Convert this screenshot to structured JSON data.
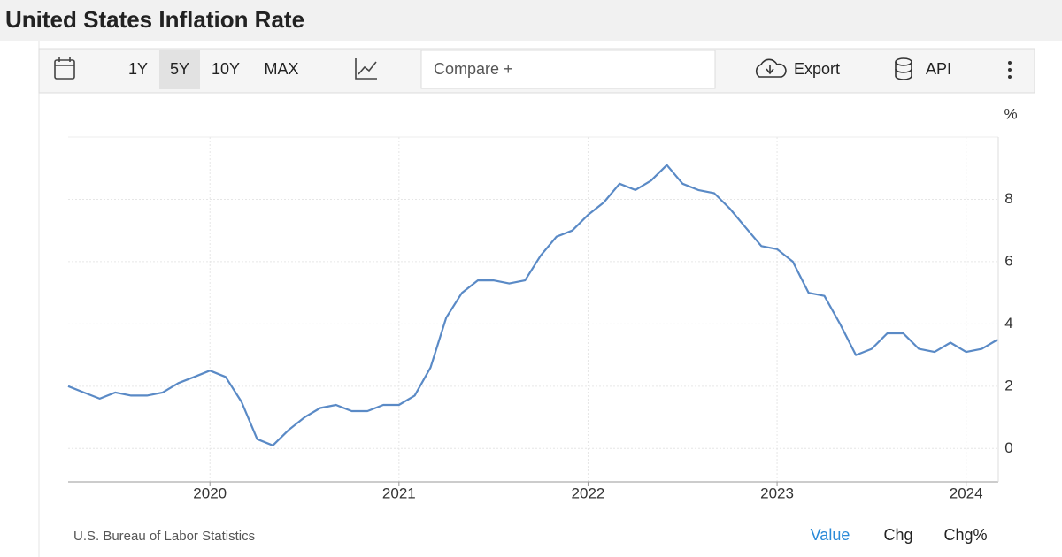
{
  "chart_data": {
    "type": "line",
    "title": "United States Inflation Rate",
    "y_unit": "%",
    "x": [
      2019.25,
      2019.333,
      2019.417,
      2019.5,
      2019.583,
      2019.667,
      2019.75,
      2019.833,
      2019.917,
      2020.0,
      2020.083,
      2020.167,
      2020.25,
      2020.333,
      2020.417,
      2020.5,
      2020.583,
      2020.667,
      2020.75,
      2020.833,
      2020.917,
      2021.0,
      2021.083,
      2021.167,
      2021.25,
      2021.333,
      2021.417,
      2021.5,
      2021.583,
      2021.667,
      2021.75,
      2021.833,
      2021.917,
      2022.0,
      2022.083,
      2022.167,
      2022.25,
      2022.333,
      2022.417,
      2022.5,
      2022.583,
      2022.667,
      2022.75,
      2022.833,
      2022.917,
      2023.0,
      2023.083,
      2023.167,
      2023.25,
      2023.333,
      2023.417,
      2023.5,
      2023.583,
      2023.667,
      2023.75,
      2023.833,
      2023.917,
      2024.0,
      2024.083,
      2024.167
    ],
    "values": [
      2.0,
      1.8,
      1.6,
      1.8,
      1.7,
      1.7,
      1.8,
      2.1,
      2.3,
      2.5,
      2.3,
      1.5,
      0.3,
      0.1,
      0.6,
      1.0,
      1.3,
      1.4,
      1.2,
      1.2,
      1.4,
      1.4,
      1.7,
      2.6,
      4.2,
      5.0,
      5.4,
      5.4,
      5.3,
      5.4,
      6.2,
      6.8,
      7.0,
      7.5,
      7.9,
      8.5,
      8.3,
      8.6,
      9.1,
      8.5,
      8.3,
      8.2,
      7.7,
      7.1,
      6.5,
      6.4,
      6.0,
      5.0,
      4.9,
      4.0,
      3.0,
      3.2,
      3.7,
      3.7,
      3.2,
      3.1,
      3.4,
      3.1,
      3.2,
      3.5
    ],
    "color": "#5a8ac6",
    "xlim": [
      2019.25,
      2024.17
    ],
    "xticks": [
      2020,
      2021,
      2022,
      2023,
      2024
    ],
    "ylim": [
      -1.07,
      10
    ],
    "yticks": [
      0,
      2,
      4,
      6,
      8
    ],
    "grid": true,
    "source": "U.S. Bureau of Labor Statistics"
  },
  "toolbar": {
    "ranges": [
      "1Y",
      "5Y",
      "10Y",
      "MAX"
    ],
    "compare": "Compare +",
    "export": "Export",
    "api": "API"
  },
  "footer": {
    "tabs": [
      "Value",
      "Chg",
      "Chg%"
    ]
  }
}
